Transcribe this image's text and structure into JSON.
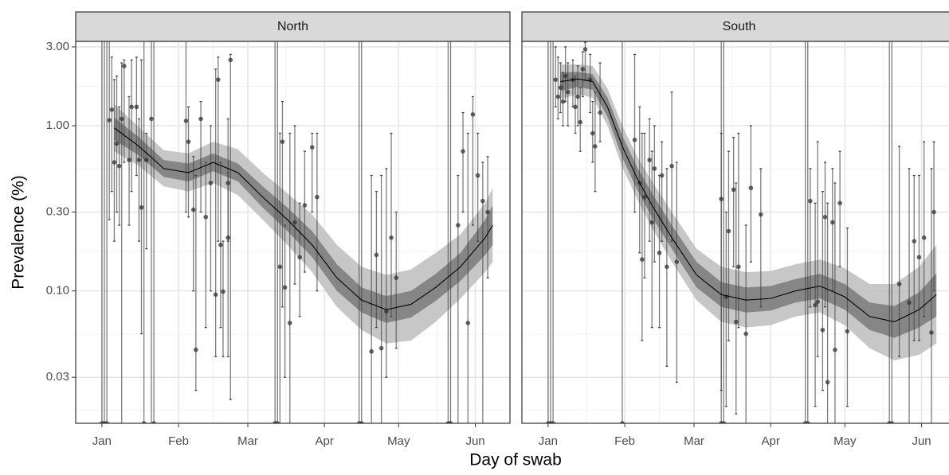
{
  "chart_data": [
    {
      "type": "scatter",
      "title": "North",
      "ylabel": "Prevalence (%)",
      "xlabel": "Day of swab",
      "log_y": true,
      "grid": true,
      "xlim": [
        -10.6,
        165
      ],
      "ylim": [
        0.0158,
        3.24
      ],
      "xticks": [
        {
          "value": 0,
          "label": "Jan"
        },
        {
          "value": 31,
          "label": "Feb"
        },
        {
          "value": 59,
          "label": "Mar"
        },
        {
          "value": 90,
          "label": "Apr"
        },
        {
          "value": 120,
          "label": "May"
        },
        {
          "value": 151,
          "label": "Jun"
        }
      ],
      "yticks": [
        {
          "value": 0.03,
          "label": "0.03"
        },
        {
          "value": 0.1,
          "label": "0.10"
        },
        {
          "value": 0.3,
          "label": "0.30"
        },
        {
          "value": 1,
          "label": "1.00"
        },
        {
          "value": 3,
          "label": "3.00"
        }
      ],
      "point_color": "#333333",
      "fit_color": "#000000",
      "inner_band_color": "#7a7a7a",
      "outer_band_color": "#bdbdbd",
      "points": {
        "x": [
          3,
          4,
          5,
          6,
          7,
          8,
          9,
          11,
          12,
          14,
          15,
          16,
          18,
          20,
          34,
          35,
          37,
          38,
          40,
          42,
          44,
          46,
          47,
          48,
          49,
          51,
          51,
          52,
          72,
          73,
          74,
          76,
          78,
          80,
          82,
          85,
          87,
          109,
          111,
          113,
          115,
          117,
          119,
          144,
          146,
          148,
          150,
          152,
          154,
          156,
          0,
          1,
          2,
          17,
          21,
          70,
          71,
          104,
          105,
          140,
          141
        ],
        "values": [
          1.08,
          1.25,
          0.6,
          0.78,
          0.57,
          1.1,
          2.3,
          0.62,
          1.3,
          1.3,
          0.62,
          0.32,
          0.62,
          1.1,
          1.07,
          0.8,
          0.31,
          0.044,
          1.1,
          0.28,
          0.45,
          0.095,
          1.9,
          0.19,
          0.099,
          0.21,
          0.45,
          2.5,
          0.14,
          0.8,
          0.105,
          0.064,
          0.26,
          0.16,
          0.33,
          0.74,
          0.37,
          0.043,
          0.165,
          0.045,
          0.075,
          0.21,
          0.12,
          0.25,
          0.7,
          0.064,
          1.17,
          0.5,
          0.35,
          0.3,
          0,
          0,
          0,
          0,
          0,
          0,
          0,
          0,
          0,
          0,
          0
        ],
        "lower": [
          0.27,
          0.4,
          0.2,
          0.3,
          0.25,
          0,
          0.6,
          0.25,
          0.4,
          0.5,
          0.2,
          0.055,
          0.18,
          0,
          0.3,
          0.28,
          0.1,
          0.025,
          0.3,
          0.06,
          0.1,
          0.04,
          0.2,
          0.06,
          0.04,
          0.04,
          0.2,
          0.022,
          0,
          0.08,
          0.03,
          0,
          0.11,
          0.07,
          0.13,
          0.3,
          0.1,
          0,
          0.06,
          0,
          0.03,
          0.07,
          0.045,
          0,
          0.3,
          0,
          0.25,
          0.2,
          0,
          0.12,
          0,
          0,
          0,
          0,
          0,
          0,
          0,
          0,
          0,
          0,
          0
        ],
        "upper": [
          5,
          2.6,
          1.9,
          2.0,
          1.3,
          2.4,
          2.5,
          1.5,
          2.5,
          2.6,
          1.1,
          2.5,
          0.9,
          5,
          5,
          1.3,
          0.65,
          0.5,
          1.4,
          0.6,
          1.0,
          2.2,
          2.6,
          0.6,
          0.2,
          0.52,
          1.1,
          2.7,
          0.9,
          1.4,
          0.25,
          0.9,
          1.0,
          0.34,
          0.7,
          0.9,
          0.9,
          0.5,
          0.4,
          0.5,
          0.55,
          0.9,
          0.3,
          0.5,
          1.2,
          0.9,
          1.5,
          0.9,
          0.6,
          0.65,
          6,
          6,
          6,
          6,
          6,
          6,
          6,
          6,
          6,
          6,
          6
        ]
      },
      "fit": {
        "x": [
          5,
          15,
          25,
          35,
          45,
          55,
          65,
          75,
          85,
          95,
          105,
          115,
          125,
          135,
          145,
          155,
          158
        ],
        "values": [
          0.97,
          0.75,
          0.55,
          0.52,
          0.6,
          0.52,
          0.37,
          0.27,
          0.19,
          0.12,
          0.088,
          0.077,
          0.083,
          0.105,
          0.14,
          0.21,
          0.25
        ],
        "inner_lower": [
          0.82,
          0.66,
          0.49,
          0.46,
          0.53,
          0.46,
          0.32,
          0.23,
          0.16,
          0.1,
          0.074,
          0.064,
          0.069,
          0.087,
          0.115,
          0.165,
          0.19
        ],
        "inner_upper": [
          1.12,
          0.85,
          0.62,
          0.59,
          0.68,
          0.59,
          0.43,
          0.32,
          0.23,
          0.145,
          0.105,
          0.093,
          0.1,
          0.127,
          0.17,
          0.27,
          0.33
        ],
        "outer_lower": [
          0.7,
          0.57,
          0.43,
          0.4,
          0.45,
          0.38,
          0.27,
          0.19,
          0.13,
          0.08,
          0.058,
          0.048,
          0.05,
          0.065,
          0.09,
          0.13,
          0.15
        ],
        "outer_upper": [
          1.35,
          0.98,
          0.71,
          0.68,
          0.8,
          0.72,
          0.52,
          0.39,
          0.29,
          0.19,
          0.14,
          0.125,
          0.135,
          0.17,
          0.22,
          0.34,
          0.42
        ]
      }
    },
    {
      "type": "scatter",
      "title": "South",
      "log_y": true,
      "grid": true,
      "xlim": [
        -10.6,
        165
      ],
      "ylim": [
        0.0158,
        3.24
      ],
      "xticks": [
        {
          "value": 0,
          "label": "Jan"
        },
        {
          "value": 31,
          "label": "Feb"
        },
        {
          "value": 59,
          "label": "Mar"
        },
        {
          "value": 90,
          "label": "Apr"
        },
        {
          "value": 120,
          "label": "May"
        },
        {
          "value": 151,
          "label": "Jun"
        }
      ],
      "point_color": "#333333",
      "fit_color": "#000000",
      "inner_band_color": "#7a7a7a",
      "outer_band_color": "#bdbdbd",
      "points": {
        "x": [
          3,
          4,
          5,
          6,
          7,
          8,
          10,
          11,
          12,
          13,
          14,
          15,
          17,
          18,
          19,
          21,
          35,
          37,
          38,
          39,
          41,
          42,
          43,
          45,
          46,
          48,
          50,
          52,
          70,
          72,
          73,
          75,
          76,
          77,
          80,
          82,
          86,
          106,
          108,
          109,
          111,
          112,
          113,
          115,
          116,
          118,
          121,
          142,
          146,
          148,
          150,
          152,
          155,
          156,
          0,
          1,
          2,
          30,
          70,
          71,
          104,
          105,
          138,
          139
        ],
        "values": [
          1.9,
          1.5,
          1.7,
          1.4,
          2.0,
          1.6,
          1.9,
          1.3,
          1.5,
          1.05,
          2.2,
          2.9,
          1.9,
          0.9,
          0.75,
          1.2,
          0.82,
          0.45,
          0.155,
          0.37,
          0.62,
          0.26,
          0.55,
          0.17,
          0.5,
          0.14,
          0.57,
          0.15,
          0.36,
          0.092,
          0.23,
          0.41,
          0.065,
          0.14,
          0.055,
          0.42,
          0.29,
          0.35,
          0.082,
          0.086,
          0.058,
          0.28,
          0.028,
          0.26,
          0.044,
          0.34,
          0.057,
          0.11,
          0.085,
          0.2,
          0.16,
          0.21,
          0.056,
          0.3,
          0,
          0,
          0,
          0,
          0,
          0,
          0,
          0,
          0,
          0
        ],
        "lower": [
          1.3,
          1.1,
          1.2,
          1.0,
          1.4,
          1.0,
          1.3,
          0.9,
          1.0,
          0.7,
          1.5,
          1.9,
          1.2,
          0.6,
          0.4,
          0.8,
          0.3,
          0.17,
          0.05,
          0.12,
          0.2,
          0.06,
          0.15,
          0.06,
          0.2,
          0.035,
          0.2,
          0.028,
          0.025,
          0.02,
          0.05,
          0.14,
          0.018,
          0.06,
          0,
          0.15,
          0.08,
          0.08,
          0.02,
          0.04,
          0.025,
          0.08,
          0.012,
          0.1,
          0,
          0.14,
          0.02,
          0.04,
          0,
          0.05,
          0.05,
          0.07,
          0,
          0.1,
          0,
          0,
          0,
          0,
          0,
          0,
          0,
          0,
          0,
          0
        ],
        "upper": [
          3.0,
          2.6,
          2.4,
          2.1,
          3.0,
          2.4,
          2.5,
          2.0,
          2.3,
          1.7,
          2.8,
          3.2,
          2.7,
          1.4,
          1.6,
          2.4,
          2.7,
          1.3,
          0.9,
          0.9,
          1.1,
          0.7,
          1.0,
          0.5,
          0.8,
          0.55,
          1.6,
          0.6,
          0.9,
          0.3,
          0.7,
          0.85,
          0.45,
          0.9,
          0.25,
          1.0,
          0.55,
          0.55,
          0.34,
          0.8,
          0.4,
          0.6,
          0.34,
          0.55,
          0.45,
          0.7,
          0.24,
          0.75,
          0.55,
          0.5,
          0.5,
          0.8,
          0.55,
          0.8,
          6,
          6,
          6,
          6,
          6,
          6,
          6,
          6,
          6,
          6
        ]
      },
      "fit": {
        "x": [
          5,
          12,
          18,
          24,
          30,
          36,
          42,
          50,
          60,
          70,
          80,
          90,
          100,
          110,
          120,
          130,
          140,
          150,
          157
        ],
        "values": [
          1.85,
          1.92,
          1.85,
          1.3,
          0.75,
          0.48,
          0.33,
          0.21,
          0.125,
          0.095,
          0.088,
          0.09,
          0.1,
          0.107,
          0.092,
          0.07,
          0.065,
          0.077,
          0.095
        ],
        "inner_lower": [
          1.62,
          1.72,
          1.65,
          1.13,
          0.64,
          0.41,
          0.28,
          0.18,
          0.105,
          0.08,
          0.074,
          0.076,
          0.085,
          0.09,
          0.077,
          0.058,
          0.052,
          0.06,
          0.07
        ],
        "inner_upper": [
          2.1,
          2.12,
          2.05,
          1.48,
          0.87,
          0.56,
          0.39,
          0.25,
          0.15,
          0.113,
          0.105,
          0.107,
          0.118,
          0.127,
          0.11,
          0.085,
          0.081,
          0.098,
          0.128
        ],
        "outer_lower": [
          1.45,
          1.55,
          1.48,
          1.0,
          0.56,
          0.36,
          0.24,
          0.15,
          0.088,
          0.065,
          0.06,
          0.062,
          0.07,
          0.074,
          0.062,
          0.045,
          0.038,
          0.041,
          0.048
        ],
        "outer_upper": [
          2.35,
          2.35,
          2.3,
          1.68,
          1.0,
          0.65,
          0.46,
          0.3,
          0.18,
          0.14,
          0.13,
          0.132,
          0.145,
          0.155,
          0.137,
          0.11,
          0.11,
          0.14,
          0.19
        ]
      }
    }
  ]
}
